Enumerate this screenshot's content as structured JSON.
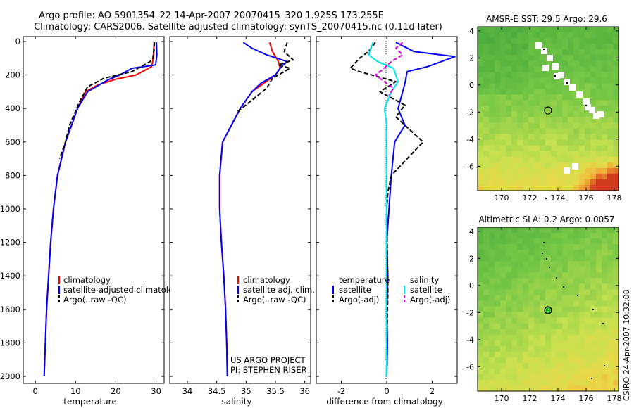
{
  "header": {
    "title_line1": "Argo profile: AO 5901354_22 14-Apr-2007 20070415_320 1.925S 173.255E",
    "title_line2": "Climatology: CARS2006. Satellite-adjusted climatology: synTS_20070415.nc (0.11d later)"
  },
  "colors": {
    "climatology": "#ff0000",
    "satellite": "#0000ff",
    "argo": "#000000",
    "satellite_salinity": "#00e5ee",
    "argo_salinity": "#dd00dd"
  },
  "panels": {
    "temperature": {
      "xlabel": "temperature",
      "xticks": [
        "0",
        "10",
        "20",
        "30"
      ],
      "legend": [
        "climatology",
        "satellite-adjusted climatology",
        "Argo(..raw -QC)"
      ]
    },
    "salinity": {
      "xlabel": "salinity",
      "xticks": [
        "34",
        "34.5",
        "35",
        "35.5",
        "36"
      ],
      "legend": [
        "climatology",
        "satellite adj. clim.",
        "Argo(..raw -QC)"
      ],
      "note_line1": "US ARGO PROJECT",
      "note_line2": "PI: STEPHEN RISER"
    },
    "difference": {
      "xlabel": "difference from climatology",
      "xticks": [
        "-2",
        "0",
        "2"
      ],
      "legend_temp_head": "temperature",
      "legend_sal_head": "salinity",
      "legend_temp": [
        "satellite",
        "Argo(-adj)"
      ],
      "legend_sal": [
        "satellite",
        "Argo(-adj)"
      ]
    },
    "depth_ticks": [
      "0",
      "200",
      "400",
      "600",
      "800",
      "1000",
      "1200",
      "1400",
      "1600",
      "1800",
      "2000"
    ]
  },
  "maps": {
    "sst": {
      "title": "AMSR-E SST: 29.5 Argo: 29.6",
      "yticks": [
        "4",
        "2",
        "0",
        "-2",
        "-4",
        "-6"
      ],
      "xticks": [
        "170",
        "172",
        "174",
        "176",
        "178"
      ],
      "float_position": [
        173.255,
        -1.925
      ],
      "marker_style": "open circle"
    },
    "sla": {
      "title": "Altimetric SLA: 0.2 Argo: 0.0057",
      "yticks": [
        "4",
        "2",
        "0",
        "-2",
        "-4",
        "-6"
      ],
      "xticks": [
        "170",
        "172",
        "174",
        "176",
        "178"
      ],
      "float_position": [
        173.255,
        -1.925
      ],
      "marker_style": "filled circle"
    }
  },
  "credit": "CSIRO 24-Apr-2007 10:32:08",
  "chart_data": [
    {
      "type": "line",
      "panel": "temperature",
      "xlabel": "temperature",
      "ylabel": "",
      "xlim": [
        -3,
        32
      ],
      "ylim": [
        2000,
        0
      ],
      "y_axis_reversed": true,
      "series": [
        {
          "name": "climatology",
          "color": "#ff0000",
          "style": "solid",
          "x": [
            29.5,
            29.3,
            28.9,
            25,
            20,
            15.5,
            12.5,
            10.5,
            9,
            7.5,
            5.5,
            4.5,
            3.8,
            3.3,
            2.8,
            2.5,
            2.2
          ],
          "y": [
            5,
            100,
            150,
            200,
            225,
            260,
            300,
            400,
            500,
            600,
            800,
            1000,
            1200,
            1400,
            1600,
            1800,
            2000
          ]
        },
        {
          "name": "satellite-adjusted climatology",
          "color": "#0000ff",
          "style": "solid",
          "x": [
            30.1,
            30.2,
            29.9,
            24,
            21,
            18,
            13,
            10.5,
            9,
            7.5,
            5.5,
            4.5,
            3.8,
            3.3,
            2.8,
            2.5,
            2.2
          ],
          "y": [
            5,
            80,
            140,
            160,
            200,
            230,
            300,
            400,
            500,
            600,
            800,
            1000,
            1200,
            1400,
            1600,
            1800,
            2000
          ]
        },
        {
          "name": "Argo(..raw -QC)",
          "color": "#000000",
          "style": "dashed",
          "x": [
            29.6,
            29.5,
            29.2,
            28.5,
            24,
            17,
            13,
            11,
            8.5,
            7.5,
            6
          ],
          "y": [
            5,
            50,
            100,
            120,
            180,
            220,
            270,
            360,
            500,
            600,
            700
          ]
        }
      ]
    },
    {
      "type": "line",
      "panel": "salinity",
      "xlabel": "salinity",
      "ylabel": "",
      "xlim": [
        33.7,
        36.1
      ],
      "ylim": [
        2000,
        0
      ],
      "y_axis_reversed": true,
      "series": [
        {
          "name": "climatology",
          "color": "#ff0000",
          "style": "solid",
          "x": [
            35.4,
            35.45,
            35.55,
            35.58,
            35.5,
            35.3,
            35.1,
            34.9,
            34.75,
            34.6,
            34.55,
            34.55,
            34.58,
            34.62,
            34.65,
            34.67,
            34.68
          ],
          "y": [
            5,
            60,
            120,
            160,
            200,
            250,
            300,
            400,
            500,
            600,
            800,
            1000,
            1200,
            1400,
            1600,
            1800,
            2000
          ]
        },
        {
          "name": "satellite adj. clim.",
          "color": "#0000ff",
          "style": "solid",
          "x": [
            34.95,
            35.1,
            35.35,
            35.7,
            35.6,
            35.5,
            35.25,
            35.1,
            34.9,
            34.75,
            34.6,
            34.55,
            34.55,
            34.58,
            34.62,
            34.65,
            34.67,
            34.68
          ],
          "y": [
            5,
            40,
            80,
            120,
            150,
            200,
            250,
            300,
            400,
            500,
            600,
            800,
            1000,
            1200,
            1400,
            1600,
            1800,
            2000
          ]
        },
        {
          "name": "Argo(..raw -QC)",
          "color": "#000000",
          "style": "dashed",
          "x": [
            35.7,
            35.65,
            35.8,
            35.55,
            35.75,
            35.45,
            35.35,
            35.1,
            34.85
          ],
          "y": [
            5,
            60,
            110,
            140,
            160,
            220,
            280,
            350,
            420
          ]
        }
      ]
    },
    {
      "type": "line",
      "panel": "difference",
      "xlabel": "difference from climatology",
      "ylabel": "",
      "xlim": [
        -3.1,
        3.1
      ],
      "ylim": [
        2000,
        0
      ],
      "y_axis_reversed": true,
      "series": [
        {
          "name": "temperature satellite",
          "color": "#0000ff",
          "style": "solid",
          "x": [
            0.4,
            1.2,
            3,
            1.8,
            0.9,
            0.8,
            0.6,
            0.5,
            0.8,
            0.35,
            0.2,
            0.1,
            0,
            0.05,
            0,
            0.03,
            0
          ],
          "y": [
            5,
            60,
            90,
            150,
            180,
            250,
            350,
            400,
            500,
            600,
            800,
            1000,
            1200,
            1400,
            1600,
            1800,
            2000
          ]
        },
        {
          "name": "temperature Argo(-adj)",
          "color": "#000000",
          "style": "dashed",
          "x": [
            -0.5,
            -0.8,
            -1.2,
            -1.6,
            -1.2,
            0.4,
            -0.3,
            0.8,
            0.4,
            1.6,
            0.9,
            0.2,
            0.05,
            0,
            0.05,
            0,
            0
          ],
          "y": [
            5,
            60,
            100,
            160,
            180,
            240,
            300,
            380,
            450,
            600,
            700,
            800,
            900,
            1000,
            1500,
            1800,
            2000
          ]
        },
        {
          "name": "salinity satellite",
          "color": "#00e5ee",
          "style": "solid",
          "x": [
            -0.6,
            -0.8,
            -0.4,
            0.3,
            0.5,
            0.2,
            -0.1,
            0,
            0,
            0,
            0
          ],
          "y": [
            5,
            80,
            120,
            160,
            240,
            300,
            400,
            500,
            1000,
            1500,
            2000
          ]
        },
        {
          "name": "salinity Argo(-adj)",
          "color": "#dd00dd",
          "style": "dashed",
          "x": [
            0.7,
            0.4,
            0.7,
            0.2,
            -0.2,
            -0.5,
            -0.2,
            0.3,
            0.1
          ],
          "y": [
            5,
            40,
            80,
            120,
            170,
            200,
            230,
            280,
            320
          ]
        }
      ]
    }
  ]
}
